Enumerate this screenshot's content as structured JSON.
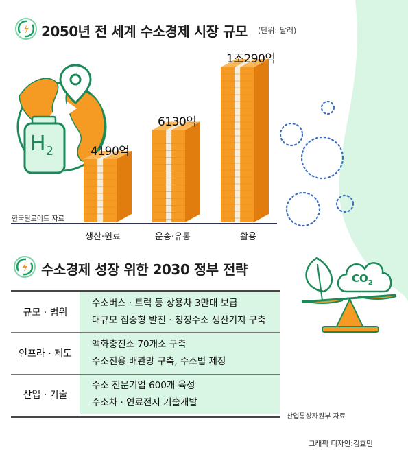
{
  "chart_data": {
    "type": "bar",
    "title": "2050년 전 세계 수소경제 시장 규모",
    "unit": "(단위: 달러)",
    "categories": [
      "생산·원료",
      "운송·유통",
      "활용"
    ],
    "values": [
      4190,
      6130,
      10290
    ],
    "value_unit": "억 달러",
    "data_labels": [
      "4190억",
      "6130억",
      "1조290억"
    ],
    "source": "한국딜로이트 자료",
    "bar_colors": {
      "front": "#f59a22",
      "side": "#e07d0e",
      "top": "#f9b75a",
      "band": "#f3efe0"
    }
  },
  "strategy": {
    "title": "수소경제 성장 위한 2030 정부 전략",
    "rows": [
      {
        "label": "규모 · 범위",
        "items": [
          "수소버스 · 트럭 등 상용차 3만대 보급",
          "대규모 집중형 발전 · 청정수소 생산기지 구축"
        ]
      },
      {
        "label": "인프라 · 제도",
        "items": [
          "액화충전소 70개소 구축",
          "수소전용 배관망 구축, 수소법 제정"
        ]
      },
      {
        "label": "산업 · 기술",
        "items": [
          "수소 전문기업 600개 육성",
          "수소차 · 연료전지 기술개발"
        ]
      }
    ],
    "source": "산업통상자원부 자료"
  },
  "credit": "그래픽 디자인:김효민",
  "decor": {
    "h2_symbol": "H",
    "h2_subscript": "2",
    "co2_symbol": "CO",
    "co2_subscript": "2"
  },
  "colors": {
    "background": "#d9f5e4",
    "panel": "#ffffff",
    "accent_green": "#19a062",
    "circle_blue": "#3a6fc2"
  }
}
